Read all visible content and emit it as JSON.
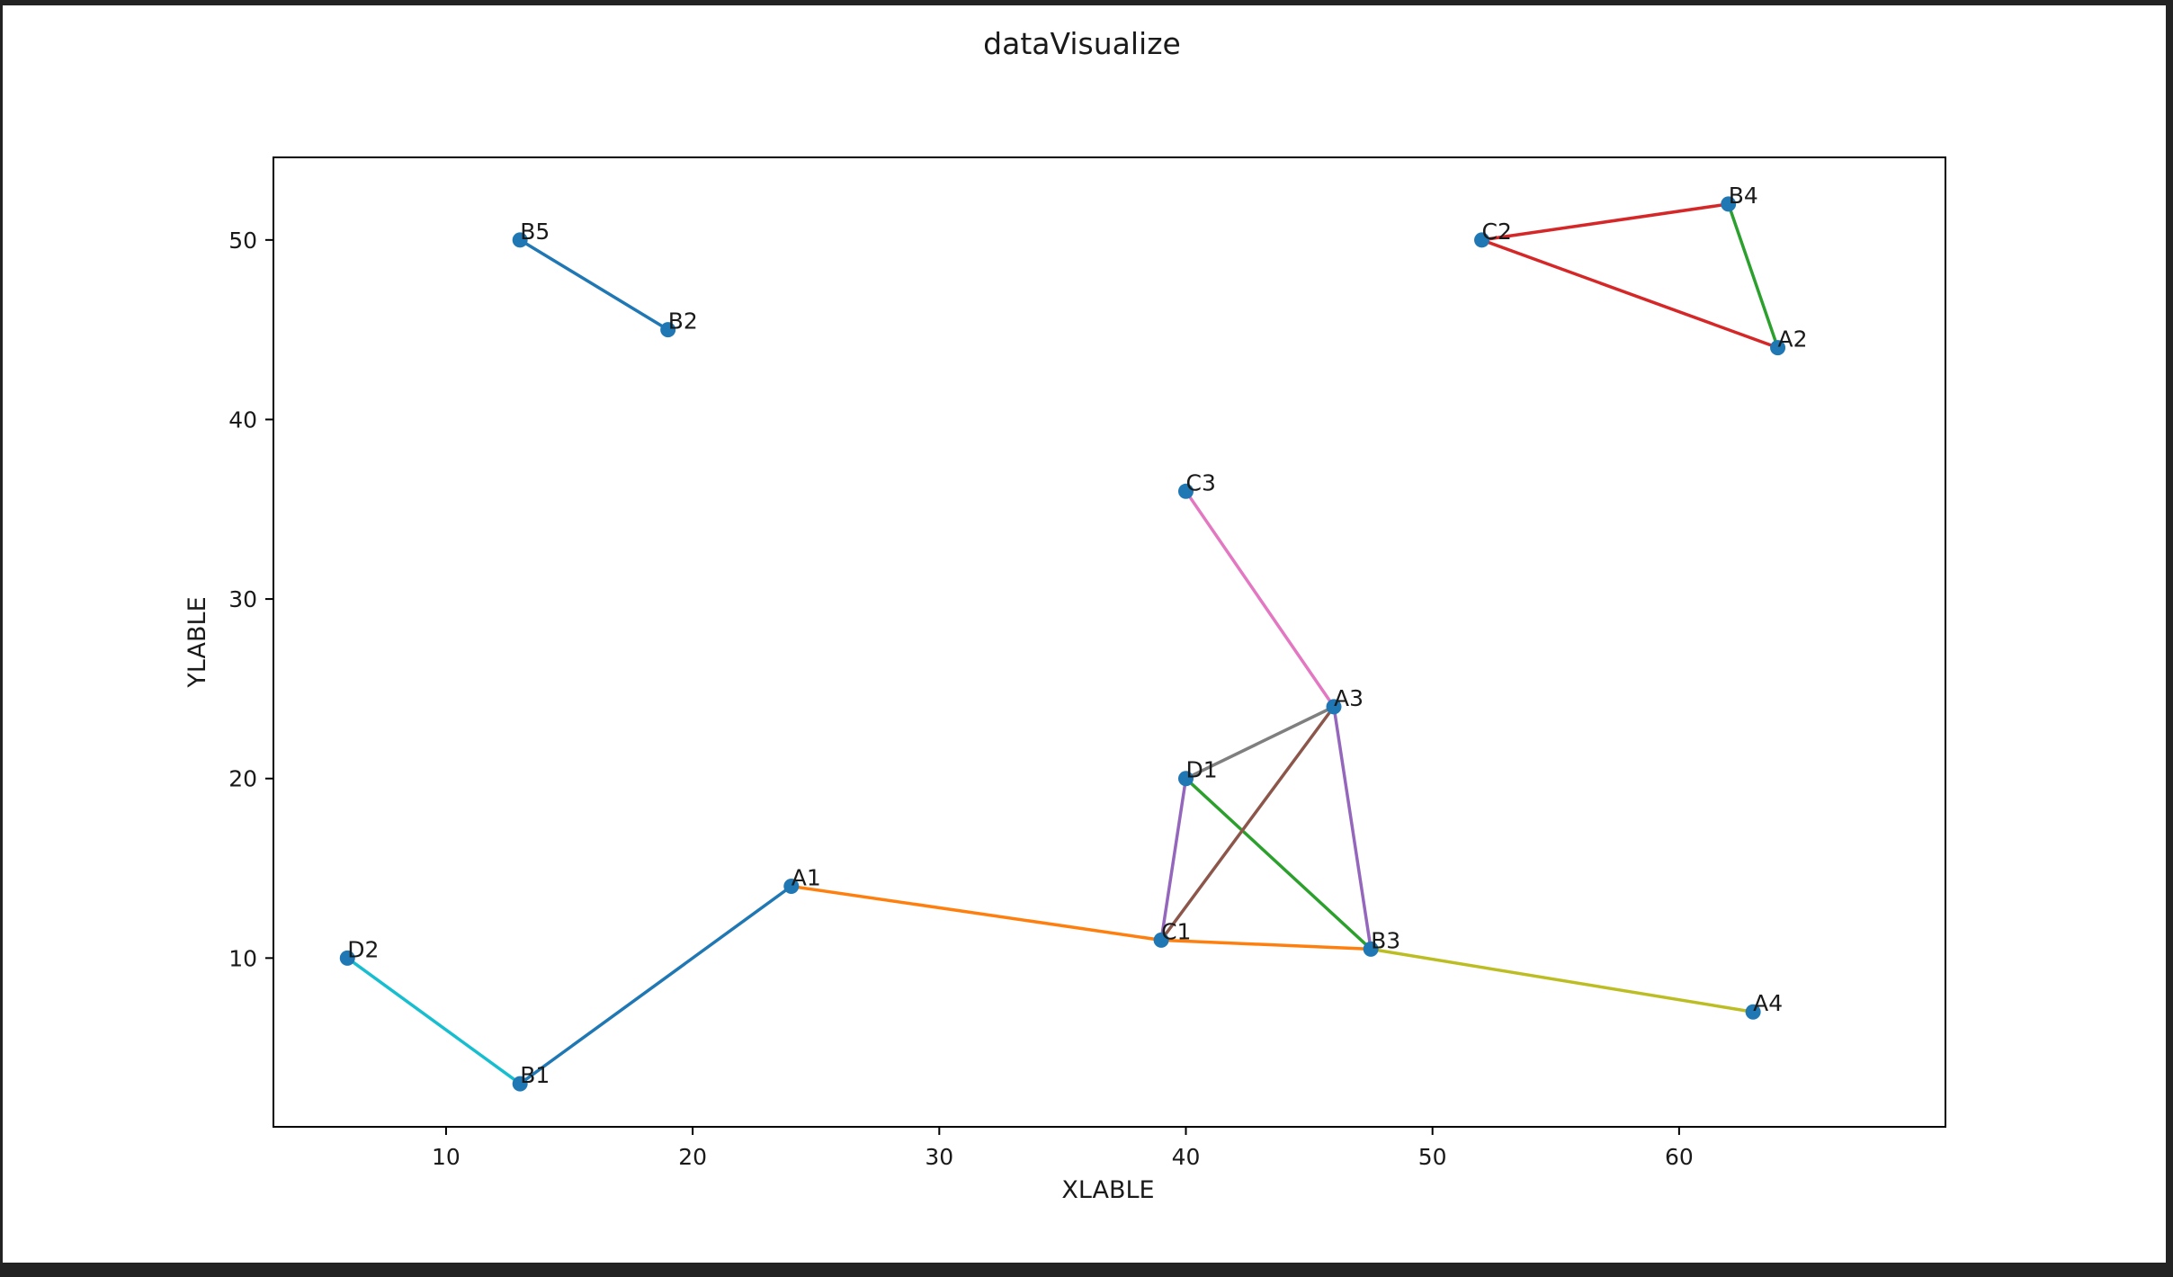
{
  "chart_data": {
    "type": "scatter",
    "title": "dataVisualize",
    "xlabel": "XLABLE",
    "ylabel": "YLABLE",
    "xlim": [
      3,
      70.8
    ],
    "ylim": [
      0.6,
      54.6
    ],
    "xticks": [
      10,
      20,
      30,
      40,
      50,
      60
    ],
    "yticks": [
      10,
      20,
      30,
      40,
      50
    ],
    "grid": false,
    "legend": false,
    "marker_color": "#1f77b4",
    "points": [
      {
        "name": "A1",
        "x": 24,
        "y": 14
      },
      {
        "name": "A2",
        "x": 64,
        "y": 44
      },
      {
        "name": "A3",
        "x": 46,
        "y": 24
      },
      {
        "name": "A4",
        "x": 63,
        "y": 7
      },
      {
        "name": "B1",
        "x": 13,
        "y": 3
      },
      {
        "name": "B2",
        "x": 19,
        "y": 45
      },
      {
        "name": "B3",
        "x": 47.5,
        "y": 10.5
      },
      {
        "name": "B4",
        "x": 62,
        "y": 52
      },
      {
        "name": "B5",
        "x": 13,
        "y": 50
      },
      {
        "name": "C1",
        "x": 39,
        "y": 11
      },
      {
        "name": "C2",
        "x": 52,
        "y": 50
      },
      {
        "name": "C3",
        "x": 40,
        "y": 36
      },
      {
        "name": "D1",
        "x": 40,
        "y": 20
      },
      {
        "name": "D2",
        "x": 6,
        "y": 10
      }
    ],
    "segments": [
      {
        "from": "B5",
        "to": "B2",
        "color": "#1f77b4"
      },
      {
        "from": "B1",
        "to": "A1",
        "color": "#1f77b4"
      },
      {
        "from": "A1",
        "to": "C1",
        "color": "#ff7f0e"
      },
      {
        "from": "C1",
        "to": "B3",
        "color": "#ff7f0e"
      },
      {
        "from": "D1",
        "to": "B3",
        "color": "#2ca02c"
      },
      {
        "from": "B4",
        "to": "A2",
        "color": "#2ca02c"
      },
      {
        "from": "C2",
        "to": "B4",
        "color": "#d62728"
      },
      {
        "from": "C2",
        "to": "A2",
        "color": "#d62728"
      },
      {
        "from": "D1",
        "to": "C1",
        "color": "#9467bd"
      },
      {
        "from": "A3",
        "to": "B3",
        "color": "#9467bd"
      },
      {
        "from": "C1",
        "to": "A3",
        "color": "#8c564b"
      },
      {
        "from": "C3",
        "to": "A3",
        "color": "#e377c2"
      },
      {
        "from": "D1",
        "to": "A3",
        "color": "#7f7f7f"
      },
      {
        "from": "B3",
        "to": "A4",
        "color": "#bcbd22"
      },
      {
        "from": "D2",
        "to": "B1",
        "color": "#17becf"
      }
    ]
  }
}
